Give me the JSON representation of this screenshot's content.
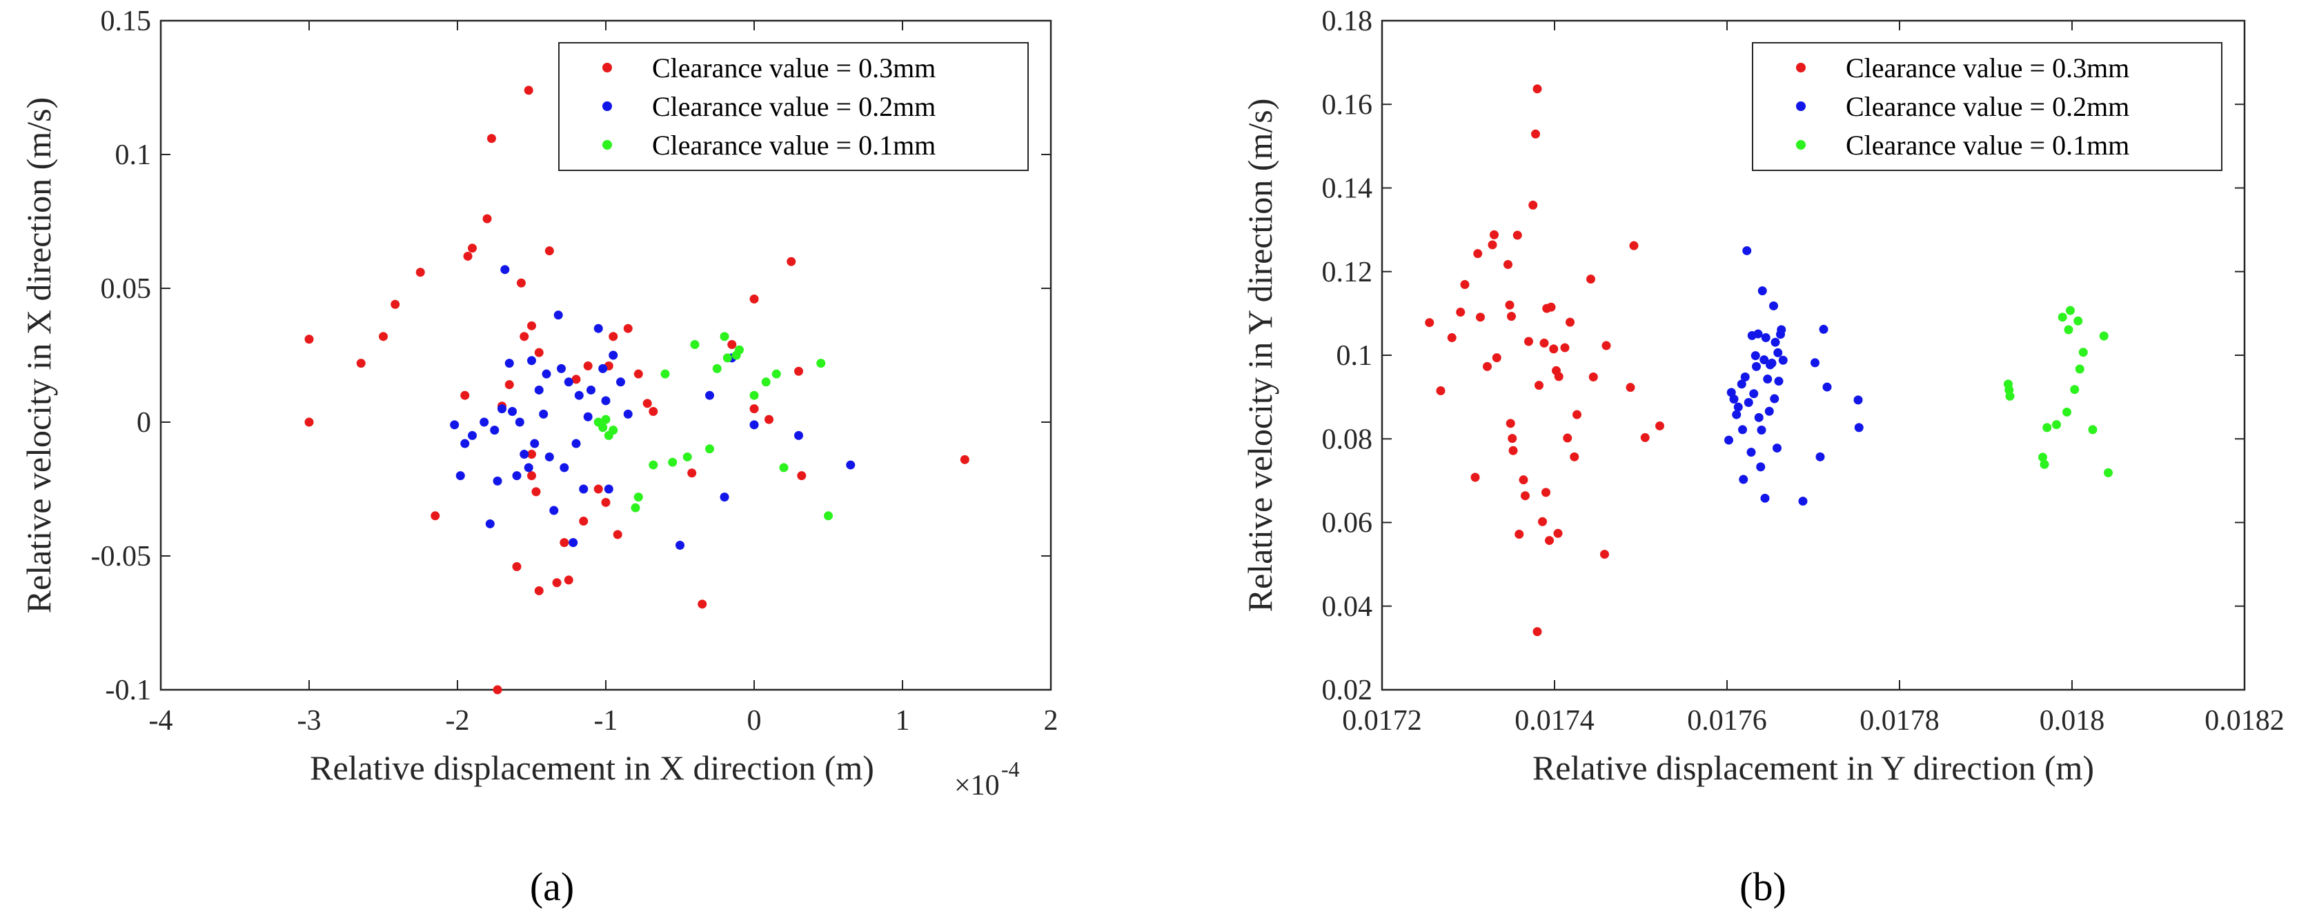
{
  "chart_data": [
    {
      "type": "scatter",
      "panel_label": "(a)",
      "xlabel": "Relative displacement in X direction (m)",
      "x_exponent_label": "×10",
      "x_exponent_power": "-4",
      "ylabel": "Relative velocity in X direction (m/s)",
      "xlim": [
        -4,
        2
      ],
      "ylim": [
        -0.1,
        0.15
      ],
      "xticks": [
        -4,
        -3,
        -2,
        -1,
        0,
        1,
        2
      ],
      "xtick_labels": [
        "-4",
        "-3",
        "-2",
        "-1",
        "0",
        "1",
        "2"
      ],
      "yticks": [
        -0.1,
        -0.05,
        0,
        0.05,
        0.1,
        0.15
      ],
      "ytick_labels": [
        "-0.1",
        "-0.05",
        "0",
        "0.05",
        "0.1",
        "0.15"
      ],
      "legend_position": "top-right",
      "series": [
        {
          "name": "Clearance value = 0.3mm",
          "color": "#e8191a",
          "points": [
            [
              -3.0,
              0.031
            ],
            [
              -3.0,
              0.0
            ],
            [
              -2.65,
              0.022
            ],
            [
              -2.5,
              0.032
            ],
            [
              -2.42,
              0.044
            ],
            [
              -2.25,
              0.056
            ],
            [
              -2.15,
              -0.035
            ],
            [
              -1.95,
              0.01
            ],
            [
              -1.93,
              0.062
            ],
            [
              -1.9,
              0.065
            ],
            [
              -1.8,
              0.076
            ],
            [
              -1.77,
              0.106
            ],
            [
              -1.73,
              -0.1
            ],
            [
              -1.7,
              0.006
            ],
            [
              -1.65,
              0.014
            ],
            [
              -1.6,
              -0.054
            ],
            [
              -1.57,
              0.052
            ],
            [
              -1.55,
              0.032
            ],
            [
              -1.52,
              0.124
            ],
            [
              -1.5,
              0.036
            ],
            [
              -1.5,
              -0.012
            ],
            [
              -1.5,
              -0.02
            ],
            [
              -1.47,
              -0.026
            ],
            [
              -1.45,
              -0.063
            ],
            [
              -1.45,
              0.026
            ],
            [
              -1.38,
              0.064
            ],
            [
              -1.33,
              -0.06
            ],
            [
              -1.28,
              -0.045
            ],
            [
              -1.25,
              -0.059
            ],
            [
              -1.2,
              0.016
            ],
            [
              -1.15,
              -0.037
            ],
            [
              -1.12,
              0.021
            ],
            [
              -1.05,
              -0.025
            ],
            [
              -1.0,
              -0.03
            ],
            [
              -0.98,
              0.021
            ],
            [
              -0.95,
              0.032
            ],
            [
              -0.92,
              -0.042
            ],
            [
              -0.85,
              0.035
            ],
            [
              -0.78,
              0.018
            ],
            [
              -0.72,
              0.007
            ],
            [
              -0.68,
              0.004
            ],
            [
              -0.42,
              -0.019
            ],
            [
              -0.35,
              -0.068
            ],
            [
              -0.15,
              0.029
            ],
            [
              0.0,
              0.046
            ],
            [
              0.0,
              0.005
            ],
            [
              0.1,
              0.001
            ],
            [
              0.25,
              0.06
            ],
            [
              0.3,
              0.019
            ],
            [
              0.32,
              -0.02
            ],
            [
              1.42,
              -0.014
            ]
          ]
        },
        {
          "name": "Clearance value = 0.2mm",
          "color": "#1216e8",
          "points": [
            [
              -2.02,
              -0.001
            ],
            [
              -1.98,
              -0.02
            ],
            [
              -1.95,
              -0.008
            ],
            [
              -1.9,
              -0.005
            ],
            [
              -1.82,
              0.0
            ],
            [
              -1.78,
              -0.038
            ],
            [
              -1.75,
              -0.003
            ],
            [
              -1.73,
              -0.022
            ],
            [
              -1.7,
              0.005
            ],
            [
              -1.68,
              0.057
            ],
            [
              -1.65,
              0.022
            ],
            [
              -1.63,
              0.004
            ],
            [
              -1.6,
              -0.02
            ],
            [
              -1.58,
              0.0
            ],
            [
              -1.55,
              -0.012
            ],
            [
              -1.52,
              -0.017
            ],
            [
              -1.5,
              0.023
            ],
            [
              -1.48,
              -0.008
            ],
            [
              -1.45,
              0.012
            ],
            [
              -1.42,
              0.003
            ],
            [
              -1.4,
              0.018
            ],
            [
              -1.38,
              -0.013
            ],
            [
              -1.35,
              -0.033
            ],
            [
              -1.32,
              0.04
            ],
            [
              -1.3,
              0.02
            ],
            [
              -1.28,
              -0.017
            ],
            [
              -1.25,
              0.015
            ],
            [
              -1.22,
              -0.045
            ],
            [
              -1.2,
              -0.008
            ],
            [
              -1.18,
              0.01
            ],
            [
              -1.15,
              -0.025
            ],
            [
              -1.12,
              0.002
            ],
            [
              -1.1,
              0.012
            ],
            [
              -1.05,
              0.035
            ],
            [
              -1.02,
              0.02
            ],
            [
              -1.0,
              0.008
            ],
            [
              -0.98,
              -0.025
            ],
            [
              -0.95,
              0.025
            ],
            [
              -0.9,
              0.015
            ],
            [
              -0.85,
              0.003
            ],
            [
              -0.5,
              -0.046
            ],
            [
              -0.3,
              0.01
            ],
            [
              -0.2,
              -0.028
            ],
            [
              -0.15,
              0.024
            ],
            [
              0.0,
              -0.001
            ],
            [
              0.3,
              -0.005
            ],
            [
              0.65,
              -0.016
            ]
          ]
        },
        {
          "name": "Clearance value = 0.1mm",
          "color": "#2cf21d",
          "points": [
            [
              -1.05,
              0.0
            ],
            [
              -1.02,
              -0.002
            ],
            [
              -1.0,
              0.001
            ],
            [
              -0.98,
              -0.005
            ],
            [
              -0.95,
              -0.003
            ],
            [
              -0.8,
              -0.032
            ],
            [
              -0.78,
              -0.028
            ],
            [
              -0.68,
              -0.016
            ],
            [
              -0.6,
              0.018
            ],
            [
              -0.55,
              -0.015
            ],
            [
              -0.45,
              -0.013
            ],
            [
              -0.4,
              0.029
            ],
            [
              -0.3,
              -0.01
            ],
            [
              -0.25,
              0.02
            ],
            [
              -0.2,
              0.032
            ],
            [
              -0.18,
              0.024
            ],
            [
              -0.12,
              0.025
            ],
            [
              -0.1,
              0.027
            ],
            [
              0.0,
              0.01
            ],
            [
              0.08,
              0.015
            ],
            [
              0.15,
              0.018
            ],
            [
              0.2,
              -0.017
            ],
            [
              0.45,
              0.022
            ],
            [
              0.5,
              -0.035
            ]
          ]
        }
      ]
    },
    {
      "type": "scatter",
      "panel_label": "(b)",
      "xlabel": "Relative displacement in Y direction (m)",
      "ylabel": "Relative velocity in Y direction (m/s)",
      "xlim": [
        0.0172,
        0.0182
      ],
      "ylim": [
        0.02,
        0.18
      ],
      "xticks": [
        0.0172,
        0.0174,
        0.0176,
        0.0178,
        0.018,
        0.0182
      ],
      "xtick_labels": [
        "0.0172",
        "0.0174",
        "0.0176",
        "0.0178",
        "0.018",
        "0.0182"
      ],
      "yticks": [
        0.02,
        0.04,
        0.06,
        0.08,
        0.1,
        0.12,
        0.14,
        0.16,
        0.18
      ],
      "ytick_labels": [
        "0.02",
        "0.04",
        "0.06",
        "0.08",
        "0.1",
        "0.12",
        "0.14",
        "0.16",
        "0.18"
      ],
      "legend_position": "top-right",
      "series": [
        {
          "name": "Clearance value = 0.3mm",
          "color": "#e8191a",
          "points": [
            [
              0.017255,
              0.1078
            ],
            [
              0.017268,
              0.0915
            ],
            [
              0.017281,
              0.1042
            ],
            [
              0.017291,
              0.1103
            ],
            [
              0.017296,
              0.1169
            ],
            [
              0.017308,
              0.0708
            ],
            [
              0.017311,
              0.1243
            ],
            [
              0.017314,
              0.1091
            ],
            [
              0.017322,
              0.0973
            ],
            [
              0.017328,
              0.1264
            ],
            [
              0.01733,
              0.1288
            ],
            [
              0.017333,
              0.0994
            ],
            [
              0.017346,
              0.1217
            ],
            [
              0.017348,
              0.112
            ],
            [
              0.01735,
              0.1093
            ],
            [
              0.017349,
              0.0837
            ],
            [
              0.017351,
              0.0801
            ],
            [
              0.017352,
              0.0772
            ],
            [
              0.017357,
              0.1287
            ],
            [
              0.017359,
              0.0572
            ],
            [
              0.017364,
              0.0702
            ],
            [
              0.017366,
              0.0664
            ],
            [
              0.01737,
              0.1033
            ],
            [
              0.017375,
              0.1359
            ],
            [
              0.017378,
              0.1529
            ],
            [
              0.01738,
              0.1637
            ],
            [
              0.01738,
              0.0339
            ],
            [
              0.017382,
              0.0928
            ],
            [
              0.017386,
              0.0602
            ],
            [
              0.017388,
              0.1029
            ],
            [
              0.01739,
              0.0672
            ],
            [
              0.017391,
              0.1112
            ],
            [
              0.017394,
              0.0557
            ],
            [
              0.017396,
              0.1115
            ],
            [
              0.017399,
              0.1015
            ],
            [
              0.017402,
              0.0963
            ],
            [
              0.017404,
              0.0574
            ],
            [
              0.017405,
              0.0949
            ],
            [
              0.017412,
              0.1018
            ],
            [
              0.017415,
              0.0802
            ],
            [
              0.017418,
              0.1079
            ],
            [
              0.017423,
              0.0757
            ],
            [
              0.017426,
              0.0858
            ],
            [
              0.017442,
              0.1182
            ],
            [
              0.017445,
              0.0948
            ],
            [
              0.017458,
              0.0524
            ],
            [
              0.01746,
              0.1023
            ],
            [
              0.017488,
              0.0923
            ],
            [
              0.017492,
              0.1262
            ],
            [
              0.017505,
              0.0803
            ],
            [
              0.017522,
              0.0831
            ]
          ]
        },
        {
          "name": "Clearance value = 0.2mm",
          "color": "#1216e8",
          "points": [
            [
              0.017602,
              0.0797
            ],
            [
              0.017605,
              0.0911
            ],
            [
              0.017608,
              0.0895
            ],
            [
              0.017611,
              0.0858
            ],
            [
              0.017613,
              0.0876
            ],
            [
              0.017618,
              0.0822
            ],
            [
              0.017617,
              0.0931
            ],
            [
              0.017619,
              0.0703
            ],
            [
              0.017621,
              0.0948
            ],
            [
              0.017623,
              0.125
            ],
            [
              0.017625,
              0.0887
            ],
            [
              0.017628,
              0.0768
            ],
            [
              0.017629,
              0.1047
            ],
            [
              0.017631,
              0.0908
            ],
            [
              0.017633,
              0.0999
            ],
            [
              0.017634,
              0.0973
            ],
            [
              0.017636,
              0.1051
            ],
            [
              0.017637,
              0.0851
            ],
            [
              0.017639,
              0.0733
            ],
            [
              0.01764,
              0.0821
            ],
            [
              0.017641,
              0.1154
            ],
            [
              0.017643,
              0.0989
            ],
            [
              0.017644,
              0.0658
            ],
            [
              0.017645,
              0.1042
            ],
            [
              0.017647,
              0.0943
            ],
            [
              0.017649,
              0.0866
            ],
            [
              0.01765,
              0.0977
            ],
            [
              0.017652,
              0.0981
            ],
            [
              0.017654,
              0.1118
            ],
            [
              0.017655,
              0.0896
            ],
            [
              0.017656,
              0.1031
            ],
            [
              0.017658,
              0.0778
            ],
            [
              0.017659,
              0.1006
            ],
            [
              0.01766,
              0.0938
            ],
            [
              0.017662,
              0.105
            ],
            [
              0.017663,
              0.1061
            ],
            [
              0.017665,
              0.0988
            ],
            [
              0.017688,
              0.0651
            ],
            [
              0.017702,
              0.0982
            ],
            [
              0.017708,
              0.0757
            ],
            [
              0.017712,
              0.1062
            ],
            [
              0.017716,
              0.0924
            ],
            [
              0.017752,
              0.0893
            ],
            [
              0.017753,
              0.0827
            ]
          ]
        },
        {
          "name": "Clearance value = 0.1mm",
          "color": "#2cf21d",
          "points": [
            [
              0.017926,
              0.0931
            ],
            [
              0.017927,
              0.0917
            ],
            [
              0.017928,
              0.0902
            ],
            [
              0.017966,
              0.0756
            ],
            [
              0.017968,
              0.0739
            ],
            [
              0.017971,
              0.0827
            ],
            [
              0.017982,
              0.0834
            ],
            [
              0.017989,
              0.1091
            ],
            [
              0.017994,
              0.0864
            ],
            [
              0.017996,
              0.1061
            ],
            [
              0.017998,
              0.1107
            ],
            [
              0.018003,
              0.0918
            ],
            [
              0.018007,
              0.1082
            ],
            [
              0.018009,
              0.0967
            ],
            [
              0.018013,
              0.1007
            ],
            [
              0.018024,
              0.0822
            ],
            [
              0.018037,
              0.1046
            ],
            [
              0.018042,
              0.0719
            ]
          ]
        }
      ]
    }
  ]
}
